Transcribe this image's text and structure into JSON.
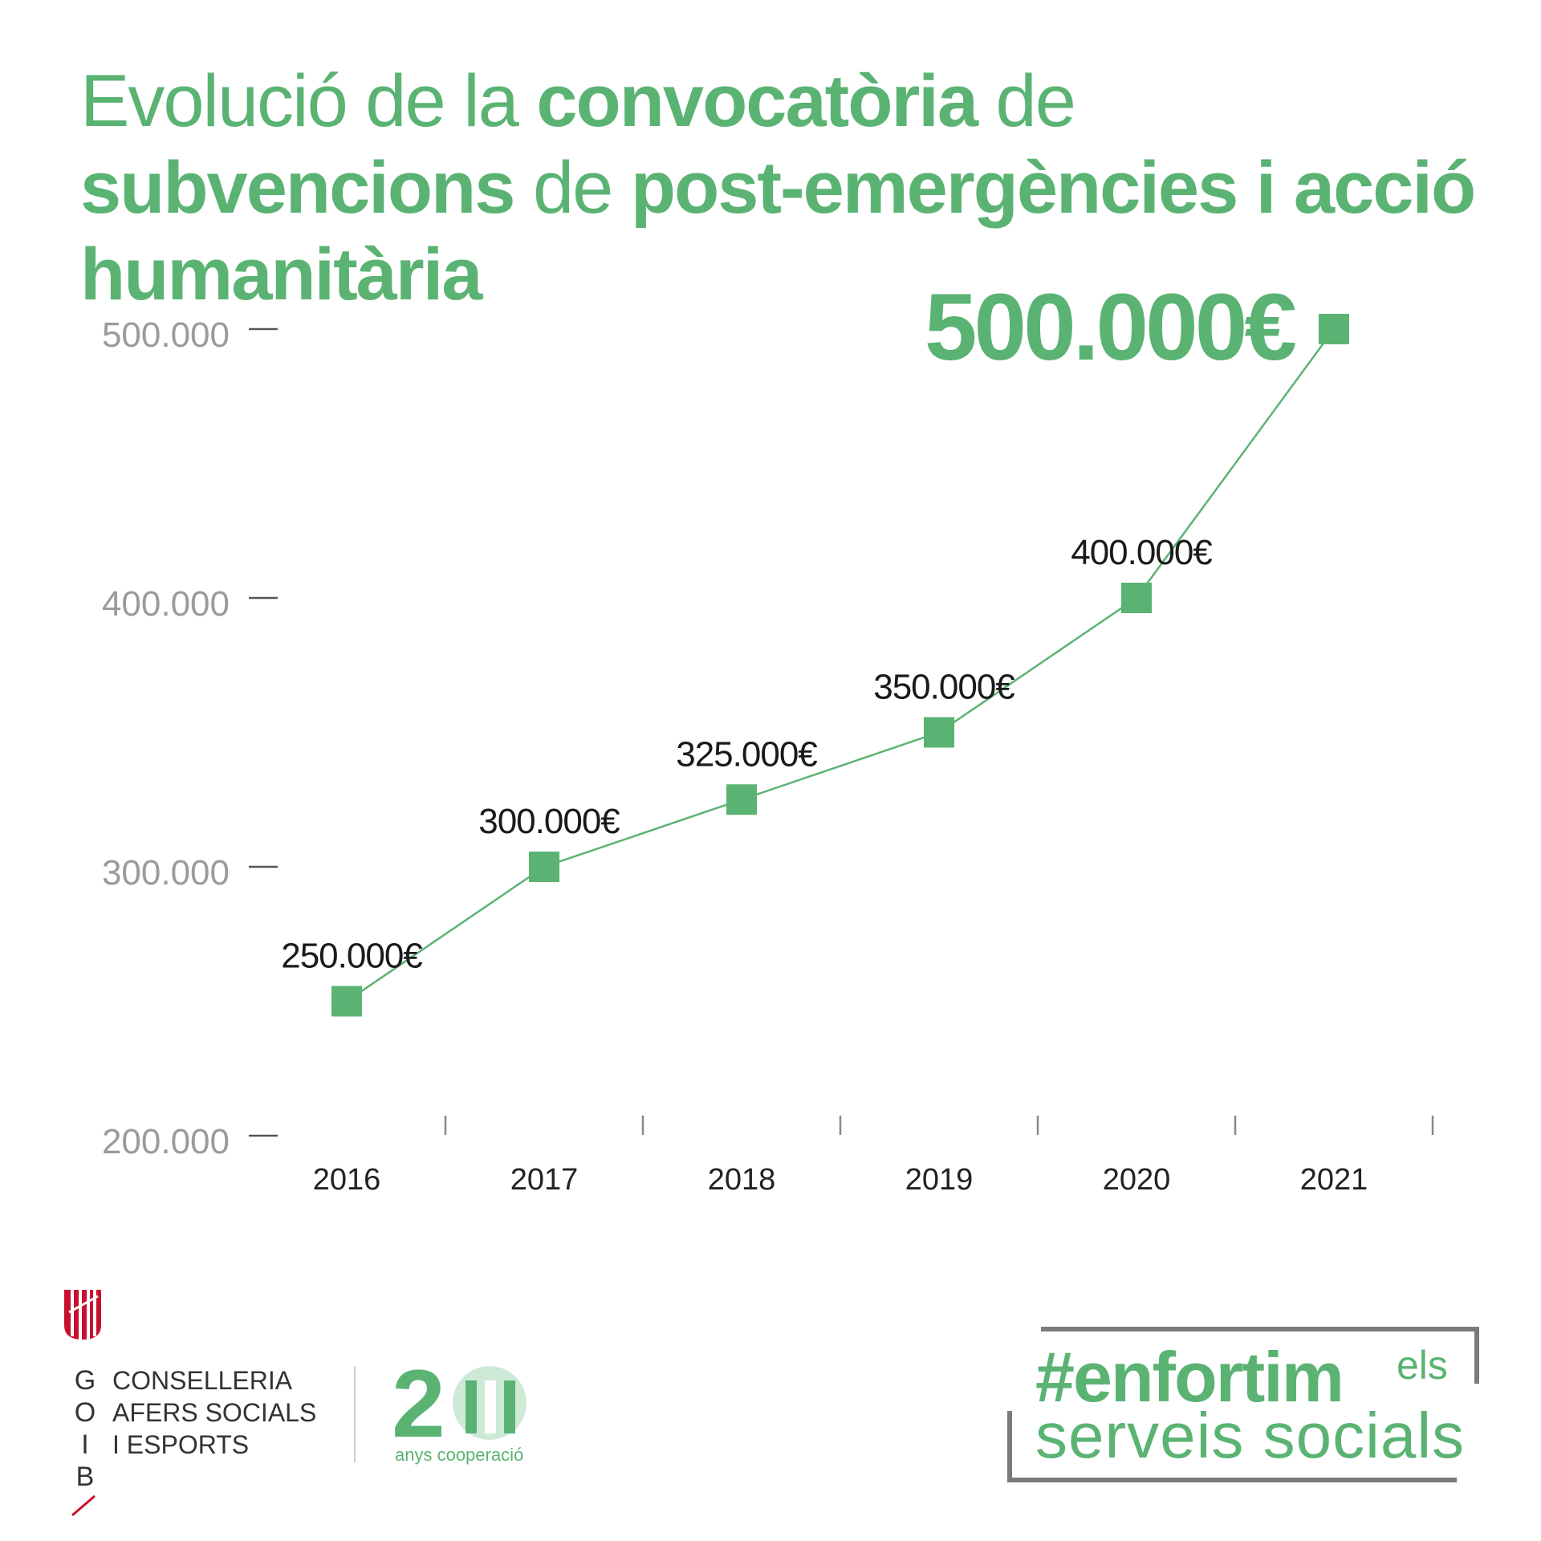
{
  "title_segments": [
    {
      "text": "Evolució de la ",
      "bold": false
    },
    {
      "text": "convocatòria",
      "bold": true
    },
    {
      "text": " de ",
      "bold": false
    },
    {
      "text": "subvencions",
      "bold": true
    },
    {
      "text": " de ",
      "bold": false
    },
    {
      "text": "post-emergències i acció humanitària",
      "bold": true
    }
  ],
  "chart_data": {
    "type": "line",
    "title": "Evolució de la convocatòria de subvencions de post-emergències i acció humanitària",
    "x": [
      "2016",
      "2017",
      "2018",
      "2019",
      "2020",
      "2021"
    ],
    "values": [
      250000,
      300000,
      325000,
      350000,
      400000,
      500000
    ],
    "data_labels": [
      "250.000€",
      "300.000€",
      "325.000€",
      "350.000€",
      "400.000€",
      "500.000€"
    ],
    "highlight_index": 5,
    "y_ticks": [
      {
        "value": 200000,
        "label": "200.000"
      },
      {
        "value": 300000,
        "label": "300.000"
      },
      {
        "value": 400000,
        "label": "400.000"
      },
      {
        "value": 500000,
        "label": "500.000"
      }
    ],
    "ylim": [
      200000,
      500000
    ],
    "grid": false,
    "marker": "square",
    "colors": {
      "line": "#5bb373",
      "marker": "#5bb373",
      "axis": "#555555"
    }
  },
  "footer": {
    "goib_letters": [
      "G",
      "O",
      "I",
      "B"
    ],
    "department_lines": [
      "CONSELLERIA",
      "AFERS SOCIALS",
      "I ESPORTS"
    ],
    "anniversary_number": "20",
    "anniversary_caption": "anys cooperació",
    "hashtag": "#enfortim",
    "hashtag_els": "els",
    "hashtag_sub": "serveis socials"
  },
  "colors": {
    "brand_green": "#5bb373",
    "goib_red": "#c8102e"
  }
}
